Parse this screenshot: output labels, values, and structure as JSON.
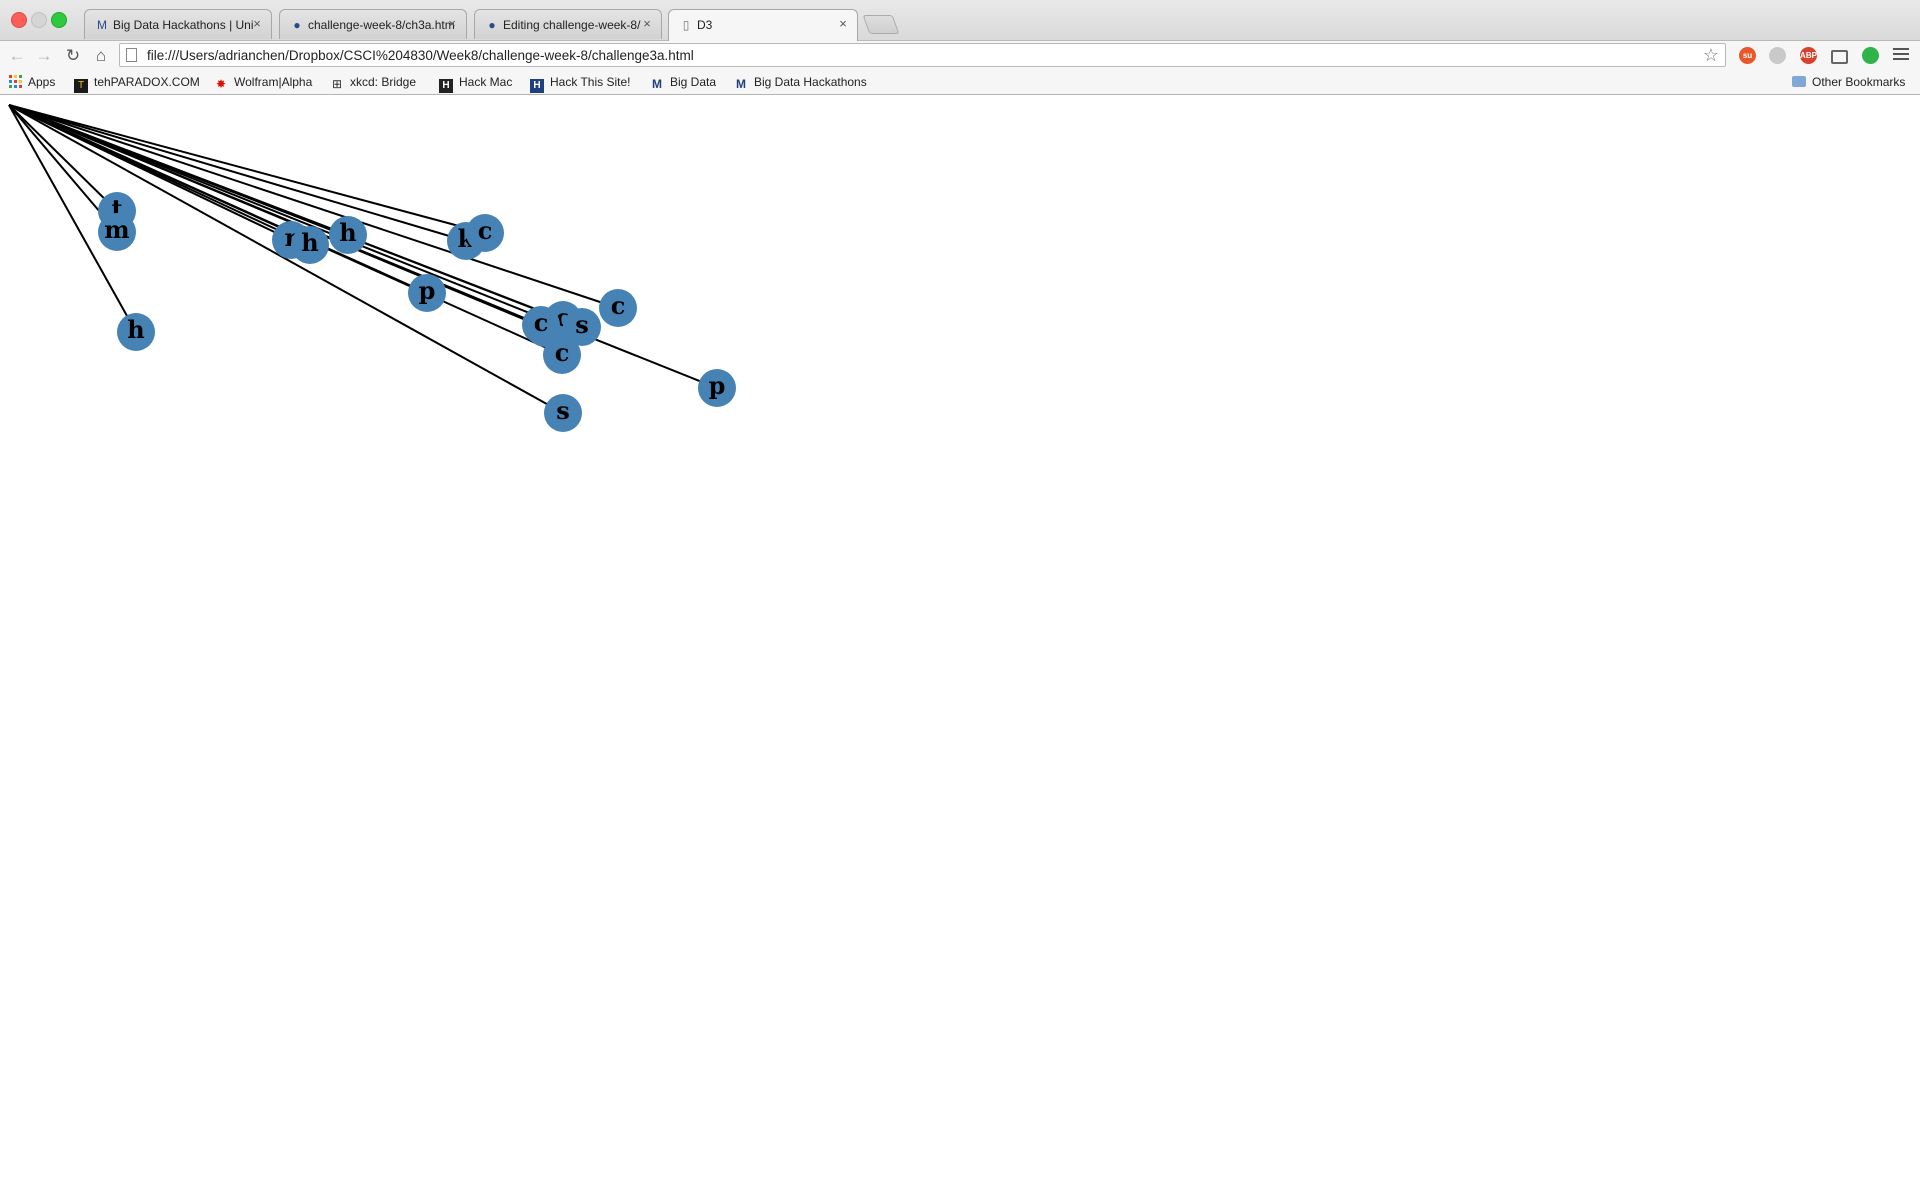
{
  "window": {
    "tabs": [
      {
        "title": "Big Data Hackathons | Uni",
        "icon": "m-logo-icon",
        "active": false
      },
      {
        "title": "challenge-week-8/ch3a.htm",
        "icon": "github-icon",
        "active": false
      },
      {
        "title": "Editing challenge-week-8/",
        "icon": "github-icon",
        "active": false
      },
      {
        "title": "D3",
        "icon": "page-icon",
        "active": true
      }
    ]
  },
  "toolbar": {
    "url": "file:///Users/adrianchen/Dropbox/CSCI%204830/Week8/challenge-week-8/challenge3a.html",
    "extensions": [
      "stumbleupon-icon",
      "ghostery-icon",
      "adblock-plus-icon",
      "cast-icon",
      "evernote-icon"
    ],
    "extension_labels": [
      "su",
      "",
      "ABP",
      "",
      ""
    ]
  },
  "bookmarks": {
    "items": [
      {
        "label": "Apps",
        "icon": "apps-grid-icon"
      },
      {
        "label": "tehPARADOX.COM",
        "icon": "tehparadox-icon"
      },
      {
        "label": "Wolfram|Alpha",
        "icon": "wolfram-icon"
      },
      {
        "label": "xkcd: Bridge",
        "icon": "xkcd-icon"
      },
      {
        "label": "Hack Mac",
        "icon": "hack-mac-icon"
      },
      {
        "label": "Hack This Site!",
        "icon": "hackthissite-icon"
      },
      {
        "label": "Big Data",
        "icon": "m-logo-icon"
      },
      {
        "label": "Big Data Hackathons",
        "icon": "m-logo-icon"
      }
    ],
    "other": "Other Bookmarks"
  },
  "graph": {
    "node_color": "#4682b4",
    "link_color": "#000000",
    "nodes": [
      {
        "label": "t"
      },
      {
        "label": "m"
      },
      {
        "label": "h"
      },
      {
        "label": "r"
      },
      {
        "label": "h"
      },
      {
        "label": "h"
      },
      {
        "label": "k"
      },
      {
        "label": "c"
      },
      {
        "label": "p"
      },
      {
        "label": "c"
      },
      {
        "label": "c"
      },
      {
        "label": "c"
      },
      {
        "label": "s"
      },
      {
        "label": "c"
      },
      {
        "label": "c"
      },
      {
        "label": "s"
      },
      {
        "label": "p"
      }
    ]
  }
}
